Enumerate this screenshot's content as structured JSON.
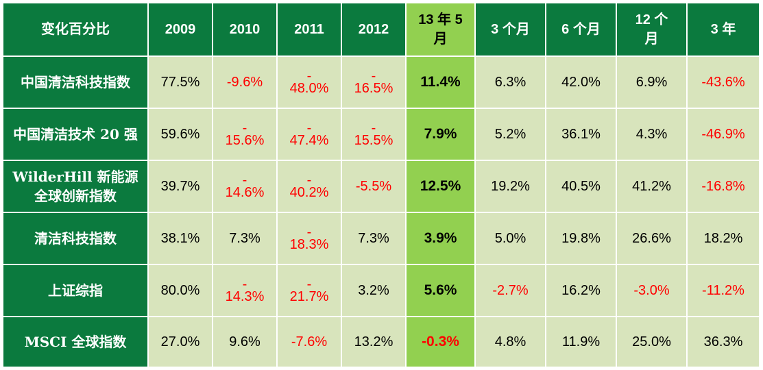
{
  "chart_data": {
    "type": "table",
    "header": {
      "label": "变化百分比",
      "columns": [
        "2009",
        "2010",
        "2011",
        "2012",
        "13 年 5 月",
        "3 个月",
        "6 个月",
        "12 个月",
        "3 年"
      ]
    },
    "highlight_column_index": 4,
    "unit": "%",
    "rows": [
      {
        "label": "中国清洁科技指数",
        "values": [
          "77.5%",
          "-9.6%",
          "-48.0%",
          "-16.5%",
          "11.4%",
          "6.3%",
          "42.0%",
          "6.9%",
          "-43.6%"
        ]
      },
      {
        "label": "中国清洁技术 20 强",
        "values": [
          "59.6%",
          "-15.6%",
          "-47.4%",
          "-15.5%",
          "7.9%",
          "5.2%",
          "36.1%",
          "4.3%",
          "-46.9%"
        ]
      },
      {
        "label": "WilderHill 新能源全球创新指数",
        "values": [
          "39.7%",
          "-14.6%",
          "-40.2%",
          "-5.5%",
          "12.5%",
          "19.2%",
          "40.5%",
          "41.2%",
          "-16.8%"
        ]
      },
      {
        "label": "清洁科技指数",
        "values": [
          "38.1%",
          "7.3%",
          "-18.3%",
          "7.3%",
          "3.9%",
          "5.0%",
          "19.8%",
          "26.6%",
          "18.2%"
        ]
      },
      {
        "label": "上证综指",
        "values": [
          "80.0%",
          "-14.3%",
          "-21.7%",
          "3.2%",
          "5.6%",
          "-2.7%",
          "16.2%",
          "-3.0%",
          "-11.2%"
        ]
      },
      {
        "label": "MSCI 全球指数",
        "values": [
          "27.0%",
          "9.6%",
          "-7.6%",
          "13.2%",
          "-0.3%",
          "4.8%",
          "11.9%",
          "25.0%",
          "36.3%"
        ]
      }
    ],
    "colors": {
      "header_bg": "#0b7a3e",
      "cell_bg": "#d8e4bc",
      "highlight_bg": "#92d050",
      "negative_text": "#ff0000",
      "text": "#000000",
      "header_text": "#ffffff"
    }
  }
}
